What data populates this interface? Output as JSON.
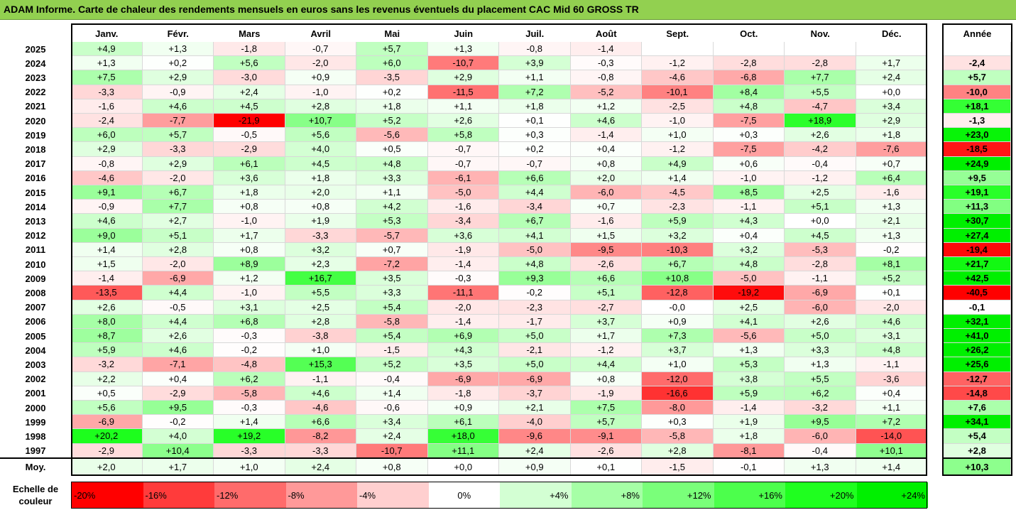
{
  "title": "ADAM Informe. Carte de chaleur des rendements mensuels en euros sans les revenus éventuels du placement CAC Mid 60 GROSS TR",
  "year_header": "Année",
  "moy_label": "Moy.",
  "scale_label": "Echelle de couleur",
  "chart_data": {
    "type": "heatmap",
    "title": "ADAM Informe. Carte de chaleur des rendements mensuels en euros sans les revenus éventuels du placement CAC Mid 60 GROSS TR",
    "columns": [
      "Janv.",
      "Févr.",
      "Mars",
      "Avril",
      "Mai",
      "Juin",
      "Juil.",
      "Août",
      "Sept.",
      "Oct.",
      "Nov.",
      "Déc."
    ],
    "years": [
      "2025",
      "2024",
      "2023",
      "2022",
      "2021",
      "2020",
      "2019",
      "2018",
      "2017",
      "2016",
      "2015",
      "2014",
      "2013",
      "2012",
      "2011",
      "2010",
      "2009",
      "2008",
      "2007",
      "2006",
      "2005",
      "2004",
      "2003",
      "2002",
      "2001",
      "2000",
      "1999",
      "1998",
      "1997"
    ],
    "values": [
      [
        "+4,9",
        "+1,3",
        "-1,8",
        "-0,7",
        "+5,7",
        "+1,3",
        "-0,8",
        "-1,4",
        "",
        "",
        "",
        ""
      ],
      [
        "+1,3",
        "+0,2",
        "+5,6",
        "-2,0",
        "+6,0",
        "-10,7",
        "+3,9",
        "-0,3",
        "-1,2",
        "-2,8",
        "-2,8",
        "+1,7"
      ],
      [
        "+7,5",
        "+2,9",
        "-3,0",
        "+0,9",
        "-3,5",
        "+2,9",
        "+1,1",
        "-0,8",
        "-4,6",
        "-6,8",
        "+7,7",
        "+2,4"
      ],
      [
        "-3,3",
        "-0,9",
        "+2,4",
        "-1,0",
        "+0,2",
        "-11,5",
        "+7,2",
        "-5,2",
        "-10,1",
        "+8,4",
        "+5,5",
        "+0,0"
      ],
      [
        "-1,6",
        "+4,6",
        "+4,5",
        "+2,8",
        "+1,8",
        "+1,1",
        "+1,8",
        "+1,2",
        "-2,5",
        "+4,8",
        "-4,7",
        "+3,4"
      ],
      [
        "-2,4",
        "-7,7",
        "-21,9",
        "+10,7",
        "+5,2",
        "+2,6",
        "+0,1",
        "+4,6",
        "-1,0",
        "-7,5",
        "+18,9",
        "+2,9"
      ],
      [
        "+6,0",
        "+5,7",
        "-0,5",
        "+5,6",
        "-5,6",
        "+5,8",
        "+0,3",
        "-1,4",
        "+1,0",
        "+0,3",
        "+2,6",
        "+1,8"
      ],
      [
        "+2,9",
        "-3,3",
        "-2,9",
        "+4,0",
        "+0,5",
        "-0,7",
        "+0,2",
        "+0,4",
        "-1,2",
        "-7,5",
        "-4,2",
        "-7,6"
      ],
      [
        "-0,8",
        "+2,9",
        "+6,1",
        "+4,5",
        "+4,8",
        "-0,7",
        "-0,7",
        "+0,8",
        "+4,9",
        "+0,6",
        "-0,4",
        "+0,7"
      ],
      [
        "-4,6",
        "-2,0",
        "+3,6",
        "+1,8",
        "+3,3",
        "-6,1",
        "+6,6",
        "+2,0",
        "+1,4",
        "-1,0",
        "-1,2",
        "+6,4"
      ],
      [
        "+9,1",
        "+6,7",
        "+1,8",
        "+2,0",
        "+1,1",
        "-5,0",
        "+4,4",
        "-6,0",
        "-4,5",
        "+8,5",
        "+2,5",
        "-1,6"
      ],
      [
        "-0,9",
        "+7,7",
        "+0,8",
        "+0,8",
        "+4,2",
        "-1,6",
        "-3,4",
        "+0,7",
        "-2,3",
        "-1,1",
        "+5,1",
        "+1,3"
      ],
      [
        "+4,6",
        "+2,7",
        "-1,0",
        "+1,9",
        "+5,3",
        "-3,4",
        "+6,7",
        "-1,6",
        "+5,9",
        "+4,3",
        "+0,0",
        "+2,1"
      ],
      [
        "+9,0",
        "+5,1",
        "+1,7",
        "-3,3",
        "-5,7",
        "+3,6",
        "+4,1",
        "+1,5",
        "+3,2",
        "+0,4",
        "+4,5",
        "+1,3"
      ],
      [
        "+1,4",
        "+2,8",
        "+0,8",
        "+3,2",
        "+0,7",
        "-1,9",
        "-5,0",
        "-9,5",
        "-10,3",
        "+3,2",
        "-5,3",
        "-0,2"
      ],
      [
        "+1,5",
        "-2,0",
        "+8,9",
        "+2,3",
        "-7,2",
        "-1,4",
        "+4,8",
        "-2,6",
        "+6,7",
        "+4,8",
        "-2,8",
        "+8,1"
      ],
      [
        "-1,4",
        "-6,9",
        "+1,2",
        "+16,7",
        "+3,5",
        "-0,3",
        "+9,3",
        "+6,6",
        "+10,8",
        "-5,0",
        "-1,1",
        "+5,2"
      ],
      [
        "-13,5",
        "+4,4",
        "-1,0",
        "+5,5",
        "+3,3",
        "-11,1",
        "-0,2",
        "+5,1",
        "-12,8",
        "-19,2",
        "-6,9",
        "+0,1"
      ],
      [
        "+2,6",
        "-0,5",
        "+3,1",
        "+2,5",
        "+5,4",
        "-2,0",
        "-2,3",
        "-2,7",
        "-0,0",
        "+2,5",
        "-6,0",
        "-2,0"
      ],
      [
        "+8,0",
        "+4,4",
        "+6,8",
        "+2,8",
        "-5,8",
        "-1,4",
        "-1,7",
        "+3,7",
        "+0,9",
        "+4,1",
        "+2,6",
        "+4,6"
      ],
      [
        "+8,7",
        "+2,6",
        "-0,3",
        "-3,8",
        "+5,4",
        "+6,9",
        "+5,0",
        "+1,7",
        "+7,3",
        "-5,6",
        "+5,0",
        "+3,1"
      ],
      [
        "+5,9",
        "+4,6",
        "-0,2",
        "+1,0",
        "-1,5",
        "+4,3",
        "-2,1",
        "-1,2",
        "+3,7",
        "+1,3",
        "+3,3",
        "+4,8"
      ],
      [
        "-3,2",
        "-7,1",
        "-4,8",
        "+15,3",
        "+5,2",
        "+3,5",
        "+5,0",
        "+4,4",
        "+1,0",
        "+5,3",
        "+1,3",
        "-1,1"
      ],
      [
        "+2,2",
        "+0,4",
        "+6,2",
        "-1,1",
        "-0,4",
        "-6,9",
        "-6,9",
        "+0,8",
        "-12,0",
        "+3,8",
        "+5,5",
        "-3,6"
      ],
      [
        "+0,5",
        "-2,9",
        "-5,8",
        "+4,6",
        "+1,4",
        "-1,8",
        "-3,7",
        "-1,9",
        "-16,6",
        "+5,9",
        "+6,2",
        "+0,4"
      ],
      [
        "+5,6",
        "+9,5",
        "-0,3",
        "-4,6",
        "-0,6",
        "+0,9",
        "+2,1",
        "+7,5",
        "-8,0",
        "-1,4",
        "-3,2",
        "+1,1"
      ],
      [
        "-6,9",
        "-0,2",
        "+1,4",
        "+6,6",
        "+3,4",
        "+6,1",
        "-4,0",
        "+5,7",
        "+0,3",
        "+1,9",
        "+9,5",
        "+7,2"
      ],
      [
        "+20,2",
        "+4,0",
        "+19,2",
        "-8,2",
        "+2,4",
        "+18,0",
        "-9,6",
        "-9,1",
        "-5,8",
        "+1,8",
        "-6,0",
        "-14,0"
      ],
      [
        "-2,9",
        "+10,4",
        "-3,3",
        "-3,3",
        "-10,7",
        "+11,1",
        "+2,4",
        "-2,6",
        "+2,8",
        "-8,1",
        "-0,4",
        "+10,1"
      ]
    ],
    "annual": [
      "",
      "-2,4",
      "+5,7",
      "-10,0",
      "+18,1",
      "-1,3",
      "+23,0",
      "-18,5",
      "+24,9",
      "+9,5",
      "+19,1",
      "+11,3",
      "+30,7",
      "+27,4",
      "-19,4",
      "+21,7",
      "+42,5",
      "-40,5",
      "-0,1",
      "+32,1",
      "+41,0",
      "+26,2",
      "+25,6",
      "-12,7",
      "-14,8",
      "+7,6",
      "+34,1",
      "+5,4",
      "+2,8"
    ],
    "averages": [
      "+2,0",
      "+1,7",
      "+1,0",
      "+2,4",
      "+0,8",
      "+0,0",
      "+0,9",
      "+0,1",
      "-1,5",
      "-0,1",
      "+1,3",
      "+1,4"
    ],
    "average_annual": "+10,3",
    "color_scale": [
      {
        "label": "-20%",
        "value": -20,
        "color": "#ff0000"
      },
      {
        "label": "-16%",
        "value": -16,
        "color": "#ff3b3b"
      },
      {
        "label": "-12%",
        "value": -12,
        "color": "#ff6b6b"
      },
      {
        "label": "-8%",
        "value": -8,
        "color": "#ff9999"
      },
      {
        "label": "-4%",
        "value": -4,
        "color": "#ffcfcf"
      },
      {
        "label": "0%",
        "value": 0,
        "color": "#ffffff"
      },
      {
        "label": "+4%",
        "value": 4,
        "color": "#d3ffd3"
      },
      {
        "label": "+8%",
        "value": 8,
        "color": "#a6ffa6"
      },
      {
        "label": "+12%",
        "value": 12,
        "color": "#7aff7a"
      },
      {
        "label": "+16%",
        "value": 16,
        "color": "#4cff4c"
      },
      {
        "label": "+20%",
        "value": 20,
        "color": "#1fff1f"
      },
      {
        "label": "+24%",
        "value": 24,
        "color": "#00f000"
      }
    ]
  }
}
